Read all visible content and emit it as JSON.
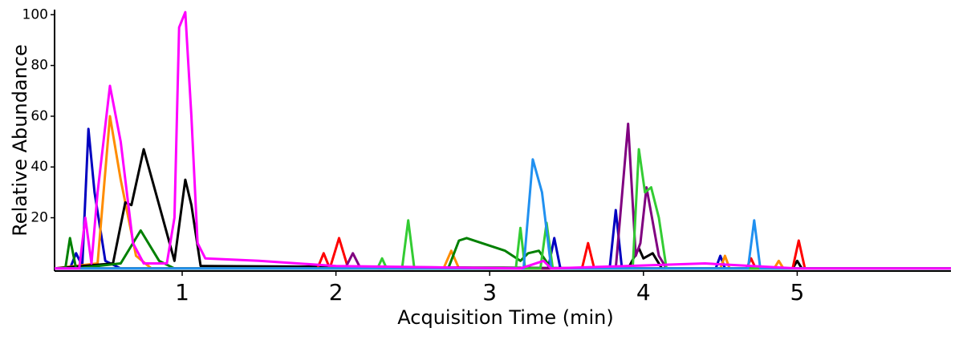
{
  "chart_data": {
    "type": "line",
    "x_label": "Acquisition Time (min)",
    "y_label": "Relative Abundance",
    "xlim": [
      0.17,
      6.0
    ],
    "ylim": [
      -1,
      102
    ],
    "xticks": [
      1,
      2,
      3,
      4,
      5
    ],
    "yticks": [
      20,
      40,
      60,
      80,
      100
    ],
    "series": [
      {
        "color": "#0000c0",
        "x": [
          0.17,
          0.27,
          0.31,
          0.35,
          0.39,
          0.43,
          0.5,
          0.6,
          3.38,
          3.42,
          3.46,
          3.78,
          3.82,
          3.86,
          4.47,
          4.5,
          4.53,
          6.0
        ],
        "values": [
          0,
          0,
          6,
          1,
          55,
          30,
          3,
          0,
          0,
          12,
          0,
          0,
          23,
          0,
          0,
          5,
          0,
          0
        ]
      },
      {
        "color": "#ff8c00",
        "x": [
          0.17,
          0.45,
          0.53,
          0.6,
          0.7,
          0.8,
          2.7,
          2.75,
          2.8,
          4.5,
          4.53,
          4.56,
          4.85,
          4.88,
          4.91,
          6.0
        ],
        "values": [
          0,
          2,
          60,
          35,
          5,
          0,
          0,
          7,
          0,
          0,
          5,
          0,
          0,
          3,
          0,
          0
        ]
      },
      {
        "color": "#000000",
        "x": [
          0.17,
          0.55,
          0.63,
          0.67,
          0.75,
          0.85,
          0.95,
          1.02,
          1.06,
          1.12,
          3.9,
          3.97,
          4.0,
          4.06,
          4.12,
          4.97,
          5.0,
          5.03,
          6.0
        ],
        "values": [
          0,
          2,
          26,
          25,
          47,
          25,
          3,
          35,
          25,
          1,
          0,
          8,
          4,
          6,
          0,
          0,
          3,
          0,
          0
        ]
      },
      {
        "color": "#008000",
        "x": [
          0.17,
          0.24,
          0.27,
          0.31,
          0.6,
          0.73,
          0.85,
          0.95,
          2.73,
          2.8,
          2.85,
          3.1,
          3.2,
          3.25,
          3.32,
          3.4,
          6.0
        ],
        "values": [
          0,
          0,
          12,
          0,
          2,
          15,
          3,
          0,
          0,
          11,
          12,
          7,
          3,
          6,
          7,
          0,
          0
        ]
      },
      {
        "color": "#ff0000",
        "x": [
          0.17,
          1.88,
          1.92,
          1.96,
          2.02,
          2.08,
          3.6,
          3.64,
          3.68,
          4.67,
          4.7,
          4.73,
          4.97,
          5.01,
          5.05,
          6.0
        ],
        "values": [
          0,
          0,
          6,
          0,
          12,
          0,
          0,
          10,
          0,
          0,
          4,
          0,
          0,
          11,
          0,
          0
        ]
      },
      {
        "color": "#800080",
        "x": [
          0.17,
          2.06,
          2.11,
          2.16,
          3.82,
          3.9,
          3.95,
          3.98,
          4.02,
          4.1,
          4.15,
          6.0
        ],
        "values": [
          0,
          0,
          6,
          0,
          0,
          57,
          5,
          10,
          32,
          5,
          0,
          0
        ]
      },
      {
        "color": "#33cc33",
        "x": [
          0.17,
          2.27,
          2.3,
          2.33,
          2.43,
          2.47,
          2.51,
          3.17,
          3.2,
          3.23,
          3.33,
          3.37,
          3.41,
          3.93,
          3.97,
          4.01,
          4.05,
          4.1,
          4.15,
          6.0
        ],
        "values": [
          0,
          0,
          4,
          0,
          0,
          19,
          0,
          0,
          16,
          0,
          0,
          18,
          0,
          0,
          47,
          30,
          32,
          20,
          0,
          0
        ]
      },
      {
        "color": "#2090f0",
        "x": [
          0.17,
          3.22,
          3.28,
          3.34,
          3.4,
          4.68,
          4.72,
          4.76,
          6.0
        ],
        "values": [
          0,
          0,
          43,
          30,
          0,
          0,
          19,
          0,
          0
        ]
      },
      {
        "color": "#ff00ff",
        "x": [
          0.17,
          0.33,
          0.37,
          0.41,
          0.45,
          0.53,
          0.6,
          0.68,
          0.75,
          0.9,
          0.95,
          0.98,
          1.02,
          1.06,
          1.1,
          1.15,
          1.5,
          2.0,
          3.2,
          3.35,
          3.4,
          4.4,
          5.0,
          6.0
        ],
        "values": [
          0,
          0,
          20,
          2,
          30,
          72,
          50,
          10,
          2,
          2,
          20,
          95,
          101,
          60,
          10,
          4,
          3,
          1,
          0,
          3,
          0,
          2,
          0,
          0
        ]
      }
    ]
  }
}
